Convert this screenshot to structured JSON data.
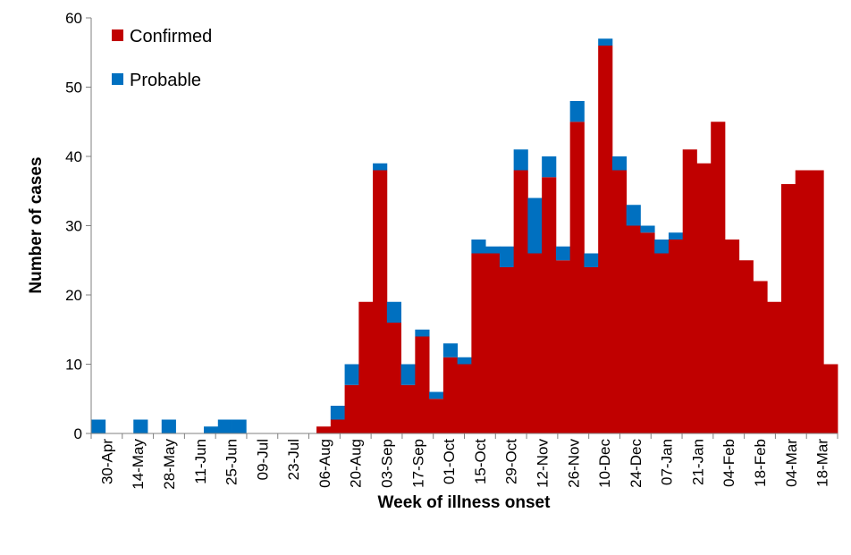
{
  "chart_data": {
    "type": "bar",
    "stacked": true,
    "title": "",
    "xlabel": "Week of illness onset",
    "ylabel": "Number of cases",
    "ylim": [
      0,
      60
    ],
    "yticks": [
      0,
      10,
      20,
      30,
      40,
      50,
      60
    ],
    "grid": false,
    "legend_position": "top-left",
    "tick_labels": [
      "30-Apr",
      "14-May",
      "28-May",
      "11-Jun",
      "25-Jun",
      "09-Jul",
      "23-Jul",
      "06-Aug",
      "20-Aug",
      "03-Sep",
      "17-Sep",
      "01-Oct",
      "15-Oct",
      "29-Oct",
      "12-Nov",
      "26-Nov",
      "10-Dec",
      "24-Dec",
      "07-Jan",
      "21-Jan",
      "04-Feb",
      "18-Feb",
      "04-Mar",
      "18-Mar"
    ],
    "series": [
      {
        "name": "Confirmed",
        "color": "#C00000",
        "values": [
          0,
          0,
          0,
          0,
          0,
          0,
          0,
          0,
          0,
          0,
          0,
          0,
          0,
          0,
          0,
          0,
          1,
          2,
          7,
          19,
          38,
          16,
          7,
          14,
          5,
          11,
          10,
          26,
          26,
          24,
          38,
          26,
          37,
          25,
          45,
          24,
          56,
          38,
          30,
          29,
          26,
          28,
          41,
          39,
          45,
          28,
          25,
          22,
          19,
          36,
          38,
          38,
          10
        ]
      },
      {
        "name": "Probable",
        "color": "#0070C0",
        "values": [
          2,
          0,
          0,
          2,
          0,
          2,
          0,
          0,
          1,
          2,
          2,
          0,
          0,
          0,
          0,
          0,
          0,
          2,
          3,
          0,
          1,
          3,
          3,
          1,
          1,
          2,
          1,
          2,
          1,
          3,
          3,
          8,
          3,
          2,
          3,
          2,
          1,
          2,
          3,
          1,
          2,
          1,
          0,
          0,
          0,
          0,
          0,
          0,
          0,
          0,
          0,
          0,
          0
        ]
      }
    ]
  }
}
